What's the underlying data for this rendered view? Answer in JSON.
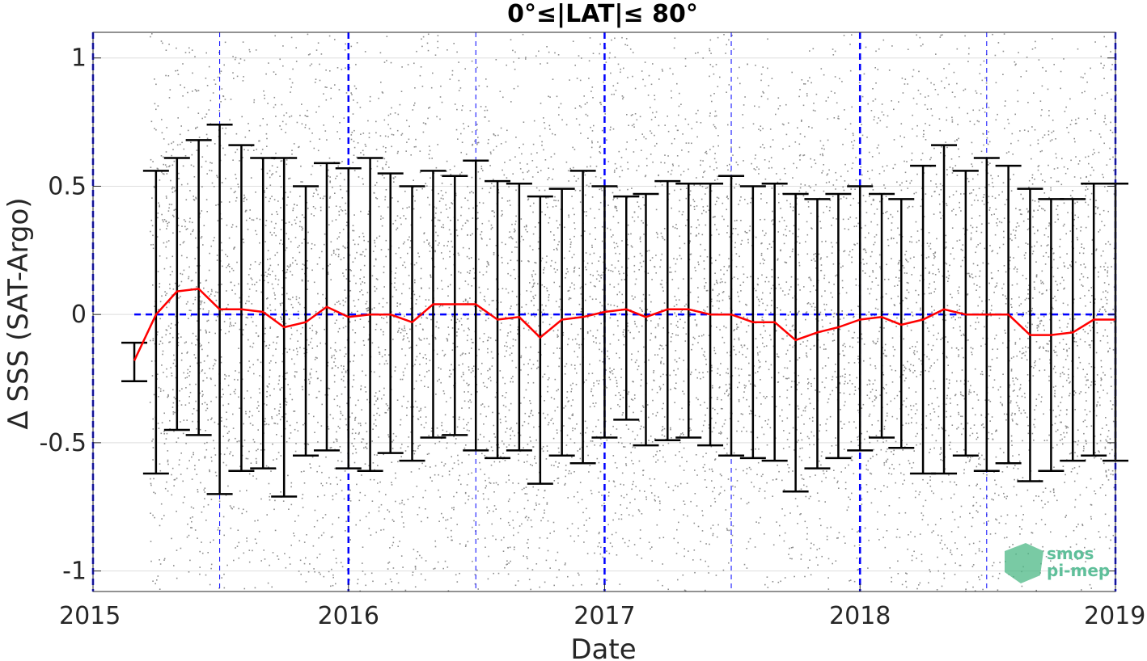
{
  "chart_data": {
    "type": "line",
    "title": "0°≤|LAT|≤ 80°",
    "xlabel": "Date",
    "ylabel": "Δ SSS (SAT-Argo)",
    "xlim": [
      "2015-01-01",
      "2019-01-01"
    ],
    "ylim": [
      -1.08,
      1.1
    ],
    "x_ticks": [
      "2015",
      "2016",
      "2017",
      "2018",
      "2019"
    ],
    "y_ticks": [
      -1,
      -0.5,
      0,
      0.5,
      1
    ],
    "y_tick_labels": [
      "-1",
      "-0.5",
      "0",
      "0.5",
      "1"
    ],
    "grid": true,
    "colors": {
      "mean_line": "#ff0000",
      "error_bars": "#000000",
      "scatter": "#8c8c8c",
      "reference_lines": "#0000ff"
    },
    "reference_lines": {
      "zero_line_y": 0,
      "thick_dates": [
        "2015-01-01",
        "2016-01-01",
        "2017-01-01",
        "2018-01-01",
        "2019-01-01"
      ],
      "thin_dates": [
        "2015-07-01",
        "2016-07-01",
        "2017-07-01",
        "2018-07-01"
      ]
    },
    "scatter_note": "dense cloud of individual match-up differences",
    "series": [
      {
        "x": [
          "2015-03-01",
          "2015-04-01",
          "2015-05-01",
          "2015-06-01",
          "2015-07-01",
          "2015-08-01",
          "2015-09-01",
          "2015-10-01",
          "2015-11-01",
          "2015-12-01",
          "2016-01-01",
          "2016-02-01",
          "2016-03-01",
          "2016-04-01",
          "2016-05-01",
          "2016-06-01",
          "2016-07-01",
          "2016-08-01",
          "2016-09-01",
          "2016-10-01",
          "2016-11-01",
          "2016-12-01",
          "2017-01-01",
          "2017-02-01",
          "2017-03-01",
          "2017-04-01",
          "2017-05-01",
          "2017-06-01",
          "2017-07-01",
          "2017-08-01",
          "2017-09-01",
          "2017-10-01",
          "2017-11-01",
          "2017-12-01",
          "2018-01-01",
          "2018-02-01",
          "2018-03-01",
          "2018-04-01",
          "2018-05-01",
          "2018-06-01",
          "2018-07-01",
          "2018-08-01",
          "2018-09-01",
          "2018-10-01",
          "2018-11-01",
          "2018-12-01",
          "2019-01-01"
        ],
        "mean": [
          -0.18,
          0.0,
          0.09,
          0.1,
          0.02,
          0.02,
          0.01,
          -0.05,
          -0.03,
          0.03,
          -0.01,
          0.0,
          0.0,
          -0.03,
          0.04,
          0.04,
          0.04,
          -0.02,
          -0.01,
          -0.09,
          -0.02,
          -0.01,
          0.01,
          0.02,
          -0.01,
          0.02,
          0.02,
          0.0,
          0.0,
          -0.03,
          -0.03,
          -0.1,
          -0.07,
          -0.05,
          -0.02,
          -0.01,
          -0.04,
          -0.02,
          0.02,
          0.0,
          0.0,
          0.0,
          -0.08,
          -0.08,
          -0.07,
          -0.02,
          -0.02
        ],
        "upper": [
          -0.11,
          0.56,
          0.61,
          0.68,
          0.74,
          0.66,
          0.61,
          0.61,
          0.5,
          0.59,
          0.57,
          0.61,
          0.55,
          0.5,
          0.56,
          0.54,
          0.6,
          0.52,
          0.51,
          0.46,
          0.49,
          0.56,
          0.5,
          0.46,
          0.47,
          0.52,
          0.51,
          0.51,
          0.54,
          0.5,
          0.51,
          0.47,
          0.45,
          0.47,
          0.5,
          0.47,
          0.45,
          0.58,
          0.66,
          0.56,
          0.61,
          0.58,
          0.49,
          0.45,
          0.45,
          0.51,
          0.51
        ],
        "lower": [
          -0.26,
          -0.62,
          -0.45,
          -0.47,
          -0.7,
          -0.61,
          -0.6,
          -0.71,
          -0.55,
          -0.53,
          -0.6,
          -0.61,
          -0.54,
          -0.57,
          -0.48,
          -0.47,
          -0.53,
          -0.56,
          -0.53,
          -0.66,
          -0.55,
          -0.58,
          -0.48,
          -0.41,
          -0.51,
          -0.49,
          -0.48,
          -0.51,
          -0.55,
          -0.56,
          -0.57,
          -0.69,
          -0.6,
          -0.56,
          -0.53,
          -0.48,
          -0.52,
          -0.62,
          -0.62,
          -0.55,
          -0.61,
          -0.58,
          -0.65,
          -0.61,
          -0.57,
          -0.55,
          -0.57
        ]
      }
    ]
  },
  "logo": {
    "line1": "smos",
    "line2": "pi-mep"
  }
}
